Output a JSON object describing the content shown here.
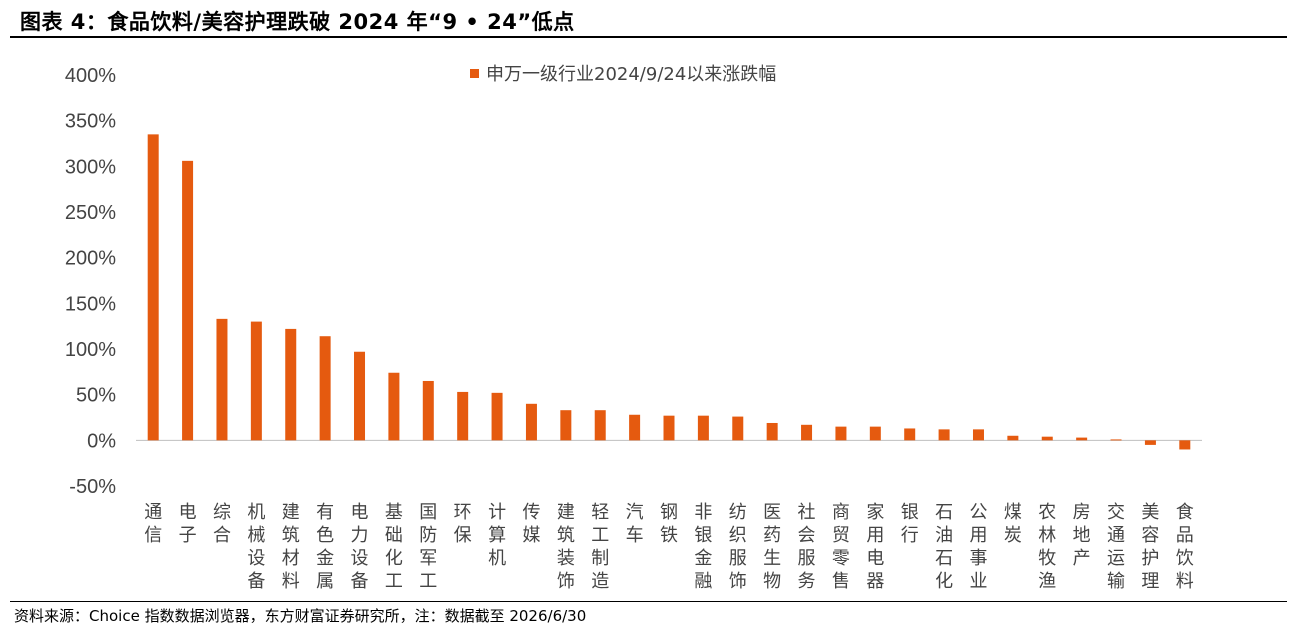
{
  "header": {
    "title": "图表 4：食品饮料/美容护理跌破 2024 年“9 • 24”低点"
  },
  "footer": {
    "source": "资料来源：Choice 指数数据浏览器，东方财富证券研究所，注：数据截至 2026/6/30"
  },
  "chart_data": {
    "type": "bar",
    "title": "",
    "xlabel": "",
    "ylabel": "",
    "ylim": [
      -50,
      400
    ],
    "yticks": [
      -50,
      0,
      50,
      100,
      150,
      200,
      250,
      300,
      350,
      400
    ],
    "ytick_labels": [
      "-50%",
      "0%",
      "50%",
      "100%",
      "150%",
      "200%",
      "250%",
      "300%",
      "350%",
      "400%"
    ],
    "grid": false,
    "legend_position": "top-center",
    "color": "#E55A0F",
    "categories": [
      "通信",
      "电子",
      "综合",
      "机械设备",
      "建筑材料",
      "有色金属",
      "电力设备",
      "基础化工",
      "国防军工",
      "环保",
      "计算机",
      "传媒",
      "建筑装饰",
      "轻工制造",
      "汽车",
      "钢铁",
      "非银金融",
      "纺织服饰",
      "医药生物",
      "社会服务",
      "商贸零售",
      "家用电器",
      "银行",
      "石油石化",
      "公用事业",
      "煤炭",
      "农林牧渔",
      "房地产",
      "交通运输",
      "美容护理",
      "食品饮料"
    ],
    "series": [
      {
        "name": "申万一级行业2024/9/24以来涨跌幅",
        "values": [
          335,
          306,
          133,
          130,
          122,
          114,
          97,
          74,
          65,
          53,
          52,
          40,
          33,
          33,
          28,
          27,
          27,
          26,
          19,
          17,
          15,
          15,
          13,
          12,
          12,
          5,
          4,
          3,
          1,
          -5,
          -10
        ]
      }
    ]
  }
}
